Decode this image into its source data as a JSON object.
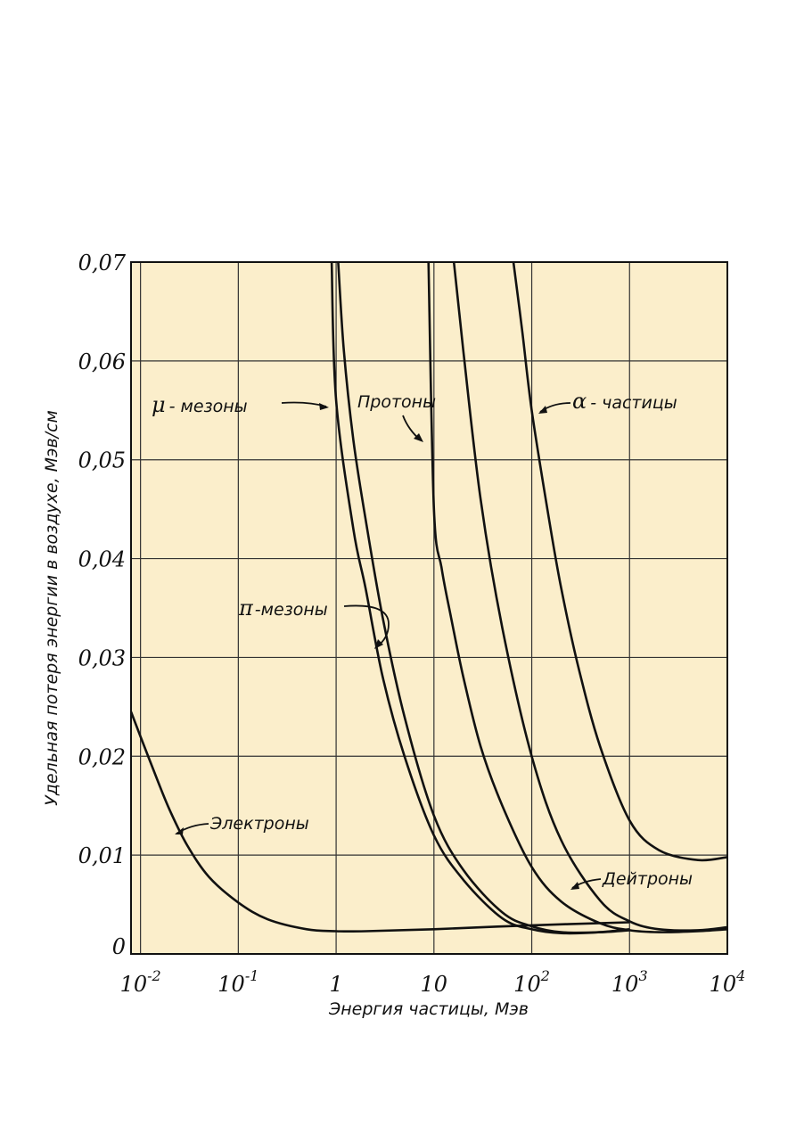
{
  "chart_data": {
    "type": "line",
    "title": "",
    "xlabel": "Энергия частицы, Мэв",
    "ylabel": "Удельная потеря энергии в воздухе,  Мэв/см",
    "xscale": "log",
    "xlim": [
      0.008,
      10000
    ],
    "ylim": [
      0,
      0.07
    ],
    "grid": true,
    "x_ticks": [
      {
        "value": 0.01,
        "base": "10",
        "exp": "-2"
      },
      {
        "value": 0.1,
        "base": "10",
        "exp": "-1"
      },
      {
        "value": 1,
        "base": "1",
        "exp": ""
      },
      {
        "value": 10,
        "base": "10",
        "exp": ""
      },
      {
        "value": 100,
        "base": "10",
        "exp": "2"
      },
      {
        "value": 1000,
        "base": "10",
        "exp": "3"
      },
      {
        "value": 10000,
        "base": "10",
        "exp": "4"
      }
    ],
    "y_ticks": [
      {
        "value": 0,
        "label": "0"
      },
      {
        "value": 0.01,
        "label": "0,01"
      },
      {
        "value": 0.02,
        "label": "0,02"
      },
      {
        "value": 0.03,
        "label": "0,03"
      },
      {
        "value": 0.04,
        "label": "0,04"
      },
      {
        "value": 0.05,
        "label": "0,05"
      },
      {
        "value": 0.06,
        "label": "0,06"
      },
      {
        "value": 0.07,
        "label": "0,07"
      }
    ],
    "series": [
      {
        "id": "electrons",
        "x": [
          0.008,
          0.01,
          0.015,
          0.02,
          0.03,
          0.05,
          0.1,
          0.2,
          0.5,
          1,
          2,
          10,
          100,
          1000
        ],
        "y": [
          0.0245,
          0.022,
          0.0175,
          0.0145,
          0.011,
          0.0078,
          0.0052,
          0.0035,
          0.0025,
          0.0023,
          0.0023,
          0.0025,
          0.0029,
          0.0032
        ]
      },
      {
        "id": "mu-mesons",
        "x": [
          0.9,
          1,
          1.5,
          2,
          3,
          5,
          10,
          20,
          50,
          100,
          200,
          500,
          1000
        ],
        "y": [
          0.07,
          0.056,
          0.043,
          0.037,
          0.028,
          0.02,
          0.012,
          0.0075,
          0.0036,
          0.0025,
          0.0021,
          0.0022,
          0.0025
        ]
      },
      {
        "id": "pi-mesons",
        "x": [
          1.05,
          1.2,
          1.5,
          2,
          3,
          5,
          10,
          20,
          50,
          100,
          200,
          500,
          1000
        ],
        "y": [
          0.07,
          0.061,
          0.052,
          0.044,
          0.034,
          0.024,
          0.014,
          0.0085,
          0.0042,
          0.0028,
          0.0022,
          0.0022,
          0.0024
        ]
      },
      {
        "id": "protons",
        "x": [
          8.8,
          10,
          12,
          15,
          20,
          30,
          50,
          100,
          200,
          500,
          1000,
          2000,
          5000,
          10000
        ],
        "y": [
          0.07,
          0.045,
          0.039,
          0.034,
          0.028,
          0.021,
          0.015,
          0.0088,
          0.0053,
          0.0031,
          0.0024,
          0.0022,
          0.0023,
          0.0025
        ]
      },
      {
        "id": "deuterons",
        "x": [
          16,
          20,
          30,
          50,
          100,
          200,
          500,
          1000,
          2000,
          5000,
          10000
        ],
        "y": [
          0.07,
          0.061,
          0.046,
          0.033,
          0.02,
          0.0115,
          0.0054,
          0.0033,
          0.0025,
          0.0024,
          0.0027
        ]
      },
      {
        "id": "alpha",
        "x": [
          65,
          80,
          100,
          150,
          200,
          300,
          500,
          1000,
          2000,
          5000,
          10000
        ],
        "y": [
          0.07,
          0.063,
          0.055,
          0.044,
          0.037,
          0.029,
          0.021,
          0.0135,
          0.0105,
          0.0095,
          0.0098
        ]
      }
    ],
    "annotations": [
      {
        "id": "electrons",
        "text": "Электроны"
      },
      {
        "id": "mu",
        "greek": "μ",
        "text": "- мезоны"
      },
      {
        "id": "pi",
        "greek": "π",
        "text": "-мезоны"
      },
      {
        "id": "protons",
        "text": "Протоны"
      },
      {
        "id": "deuterons",
        "text": "Дейтроны"
      },
      {
        "id": "alpha",
        "greek": "α",
        "text": "- частицы"
      }
    ],
    "colors": {
      "plot_bg": "#fbeecb",
      "line": "#111111",
      "grid": "#333333"
    }
  }
}
